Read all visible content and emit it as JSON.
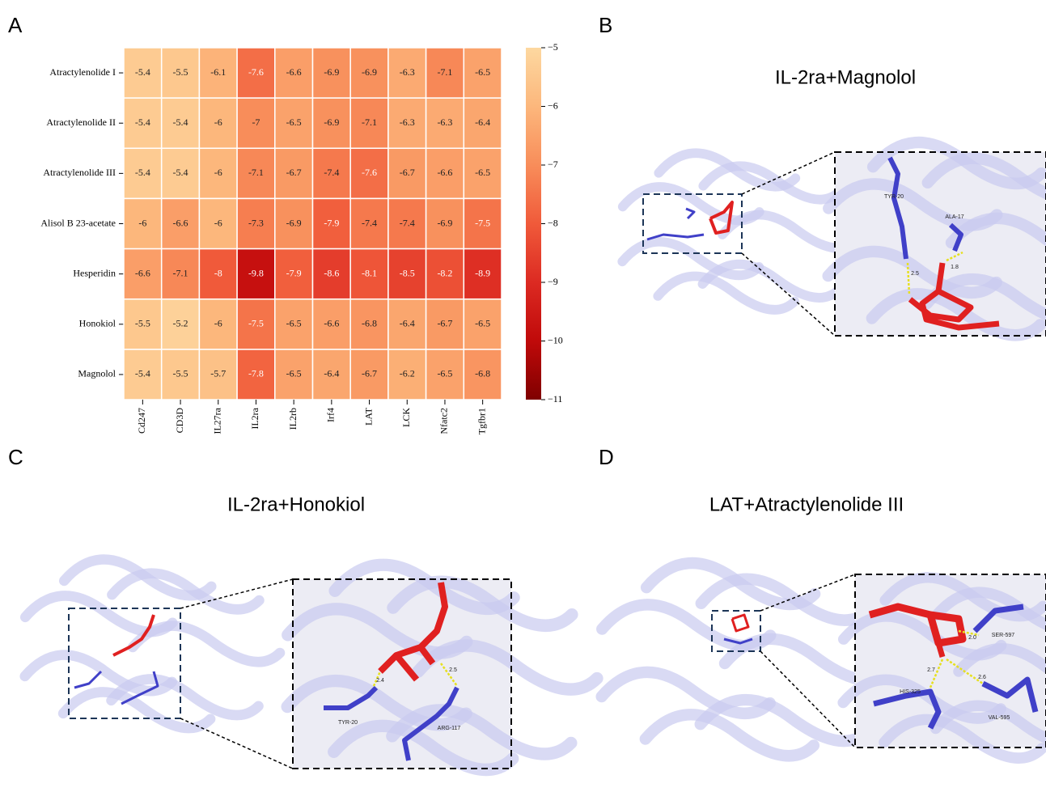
{
  "chart_data": {
    "type": "heatmap",
    "rows": [
      "Atractylenolide I",
      "Atractylenolide II",
      "Atractylenolide III",
      "Alisol B 23-acetate",
      "Hesperidin",
      "Honokiol",
      "Magnolol"
    ],
    "categories": [
      "Cd247",
      "CD3D",
      "IL27ra",
      "IL2ra",
      "IL2rb",
      "Irf4",
      "LAT",
      "LCK",
      "Nfatc2",
      "Tgfbr1"
    ],
    "values": [
      [
        -5.4,
        -5.5,
        -6.1,
        -7.6,
        -6.6,
        -6.9,
        -6.9,
        -6.3,
        -7.1,
        -6.5
      ],
      [
        -5.4,
        -5.4,
        -6,
        -7,
        -6.5,
        -6.9,
        -7.1,
        -6.3,
        -6.3,
        -6.4
      ],
      [
        -5.4,
        -5.4,
        -6,
        -7.1,
        -6.7,
        -7.4,
        -7.6,
        -6.7,
        -6.6,
        -6.5
      ],
      [
        -6,
        -6.6,
        -6,
        -7.3,
        -6.9,
        -7.9,
        -7.4,
        -7.4,
        -6.9,
        -7.5
      ],
      [
        -6.6,
        -7.1,
        -8,
        -9.8,
        -7.9,
        -8.6,
        -8.1,
        -8.5,
        -8.2,
        -8.9
      ],
      [
        -5.5,
        -5.2,
        -6,
        -7.5,
        -6.5,
        -6.6,
        -6.8,
        -6.4,
        -6.7,
        -6.5
      ],
      [
        -5.4,
        -5.5,
        -5.7,
        -7.8,
        -6.5,
        -6.4,
        -6.7,
        -6.2,
        -6.5,
        -6.8
      ]
    ],
    "clim": [
      -11,
      -5
    ],
    "cticks": [
      {
        "value": -5,
        "label": "−5"
      },
      {
        "value": -6,
        "label": "−6"
      },
      {
        "value": -7,
        "label": "−7"
      },
      {
        "value": -8,
        "label": "−8"
      },
      {
        "value": -9,
        "label": "−9"
      },
      {
        "value": -10,
        "label": "−10"
      },
      {
        "value": -11,
        "label": "−11"
      }
    ],
    "colors": [
      "#fdd8a0",
      "#fcb77c",
      "#f88d5a",
      "#f05a3a",
      "#dc2a22",
      "#c00a0a",
      "#7f0000"
    ]
  },
  "panels": [
    {
      "letter": "A"
    },
    {
      "letter": "B",
      "title": "IL-2ra+Magnolol",
      "labels": [
        "TYR-20",
        "ALA-17",
        "2.5",
        "1.8"
      ]
    },
    {
      "letter": "C",
      "title": "IL-2ra+Honokiol",
      "labels": [
        "2.4",
        "2.5",
        "TYR-20",
        "ARG-117"
      ]
    },
    {
      "letter": "D",
      "title": "LAT+Atractylenolide III",
      "labels": [
        "2.0",
        "SER-597",
        "2.7",
        "2.6",
        "HIS-325",
        "VAL-595"
      ]
    }
  ]
}
